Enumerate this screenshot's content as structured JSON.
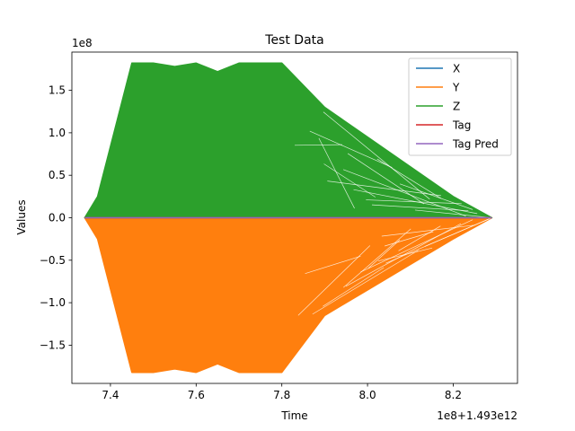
{
  "chart_data": {
    "type": "line",
    "title": "Test Data",
    "xlabel": "Time",
    "ylabel": "Values",
    "x_offset_label": "1e8+1.493e12",
    "y_scale_label": "1e8",
    "xlim": [
      7.31,
      8.35
    ],
    "ylim": [
      -1.95,
      1.95
    ],
    "x_ticks": [
      7.4,
      7.6,
      7.8,
      8.0,
      8.2
    ],
    "x_tick_labels": [
      "7.4",
      "7.6",
      "7.8",
      "8.0",
      "8.2"
    ],
    "y_ticks": [
      -1.5,
      -1.0,
      -0.5,
      0.0,
      0.5,
      1.0,
      1.5
    ],
    "y_tick_labels": [
      "−1.5",
      "−1.0",
      "−0.5",
      "0.0",
      "0.5",
      "1.0",
      "1.5"
    ],
    "legend_position": "top-right",
    "grid": false,
    "series": [
      {
        "name": "X",
        "color": "#1f77b4",
        "x": [
          7.34,
          8.29
        ],
        "y": [
          0.0,
          0.0
        ]
      },
      {
        "name": "Y",
        "color": "#ff7f0e",
        "x": [
          7.34,
          7.37,
          7.45,
          7.5,
          7.55,
          7.6,
          7.65,
          7.7,
          7.75,
          7.8,
          7.9,
          8.0,
          8.1,
          8.2,
          8.29
        ],
        "y": [
          0.0,
          -0.25,
          -1.82,
          -1.82,
          -1.78,
          -1.82,
          -1.72,
          -1.82,
          -1.82,
          -1.82,
          -1.15,
          -0.85,
          -0.55,
          -0.25,
          0.0
        ]
      },
      {
        "name": "Z",
        "color": "#2ca02c",
        "x": [
          7.34,
          7.37,
          7.45,
          7.5,
          7.55,
          7.6,
          7.65,
          7.7,
          7.75,
          7.8,
          7.9,
          8.0,
          8.1,
          8.2,
          8.29
        ],
        "y": [
          0.0,
          0.25,
          1.82,
          1.82,
          1.78,
          1.82,
          1.72,
          1.82,
          1.82,
          1.82,
          1.3,
          0.95,
          0.6,
          0.25,
          0.0
        ]
      },
      {
        "name": "Tag",
        "color": "#d62728",
        "x": [
          7.34,
          8.29
        ],
        "y": [
          0.0,
          0.0
        ]
      },
      {
        "name": "Tag Pred",
        "color": "#9467bd",
        "x": [
          7.34,
          8.29
        ],
        "y": [
          0.0,
          0.0
        ]
      }
    ]
  }
}
